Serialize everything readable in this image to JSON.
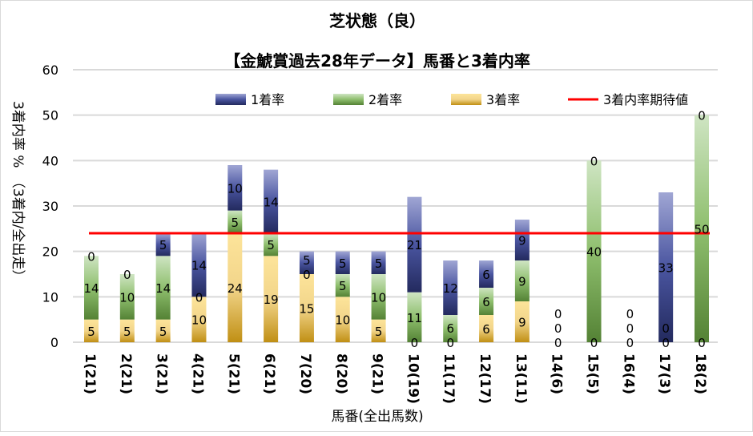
{
  "chart_data": {
    "type": "bar",
    "stacked": true,
    "title": "芝状態（良）",
    "subtitle": "【金鯱賞過去28年データ】馬番と3着内率",
    "xlabel": "馬番(全出馬数)",
    "ylabel": "3着内率 %　（3着内/全出走）",
    "ylim": [
      0,
      60
    ],
    "yticks": [
      0,
      10,
      20,
      30,
      40,
      50,
      60
    ],
    "grid": true,
    "legend_position": "top",
    "categories": [
      "1(21)",
      "2(21)",
      "3(21)",
      "4(21)",
      "5(21)",
      "6(21)",
      "7(20)",
      "8(20)",
      "9(21)",
      "10(19)",
      "11(17)",
      "12(17)",
      "13(11)",
      "14(6)",
      "15(5)",
      "16(4)",
      "17(3)",
      "18(2)"
    ],
    "series": [
      {
        "name": "3着率",
        "color": "#d4a017",
        "values": [
          5,
          5,
          5,
          10,
          24,
          19,
          15,
          10,
          5,
          0,
          0,
          6,
          9,
          0,
          0,
          0,
          0,
          0
        ]
      },
      {
        "name": "2着率",
        "color": "#6a9a45",
        "values": [
          14,
          10,
          14,
          0,
          5,
          5,
          0,
          5,
          10,
          11,
          6,
          6,
          9,
          0,
          40,
          0,
          0,
          50
        ]
      },
      {
        "name": "1着率",
        "color": "#3f4a96",
        "values": [
          0,
          0,
          5,
          14,
          10,
          14,
          5,
          5,
          5,
          21,
          12,
          6,
          9,
          0,
          0,
          0,
          33,
          0
        ]
      }
    ],
    "reference_line": {
      "name": "3着内率期待値",
      "color": "#ff0000",
      "value": 24
    }
  }
}
